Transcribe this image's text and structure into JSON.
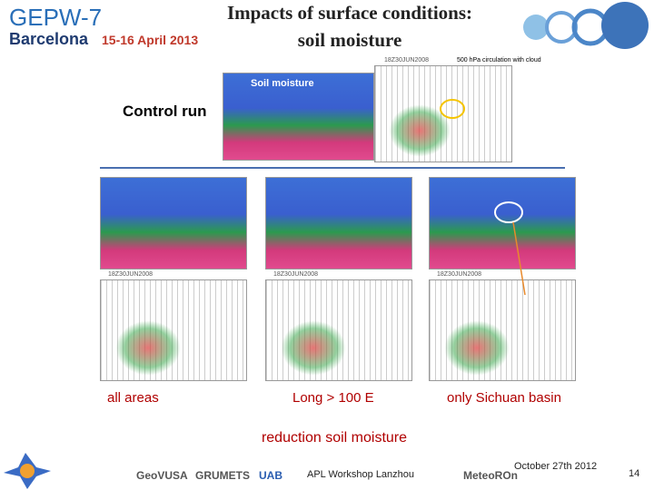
{
  "header": {
    "event": "GEPW-7",
    "city": "Barcelona",
    "dates": "15-16 April 2013"
  },
  "title": {
    "line1": "Impacts  of surface conditions:",
    "line2": "soil moisture"
  },
  "control": {
    "label": "Control run",
    "map_title": "Soil moisture",
    "map_time": "18Z30JUN2008",
    "map_caption": "500 hPa circulation with cloud"
  },
  "experiments": [
    {
      "label": "all areas",
      "map_time": "18Z30JUN2008"
    },
    {
      "label": "Long > 100 E",
      "map_time": "18Z30JUN2008"
    },
    {
      "label": "only Sichuan basin",
      "map_time": "18Z30JUN2008"
    }
  ],
  "conclusion": "reduction soil moisture",
  "footer": {
    "workshop": "APL Workshop Lanzhou",
    "date": "October 27th  2012",
    "page": "14",
    "logos": [
      "GeoVUSA",
      "GRUMETS",
      "UAB",
      "MeteoROn"
    ]
  }
}
